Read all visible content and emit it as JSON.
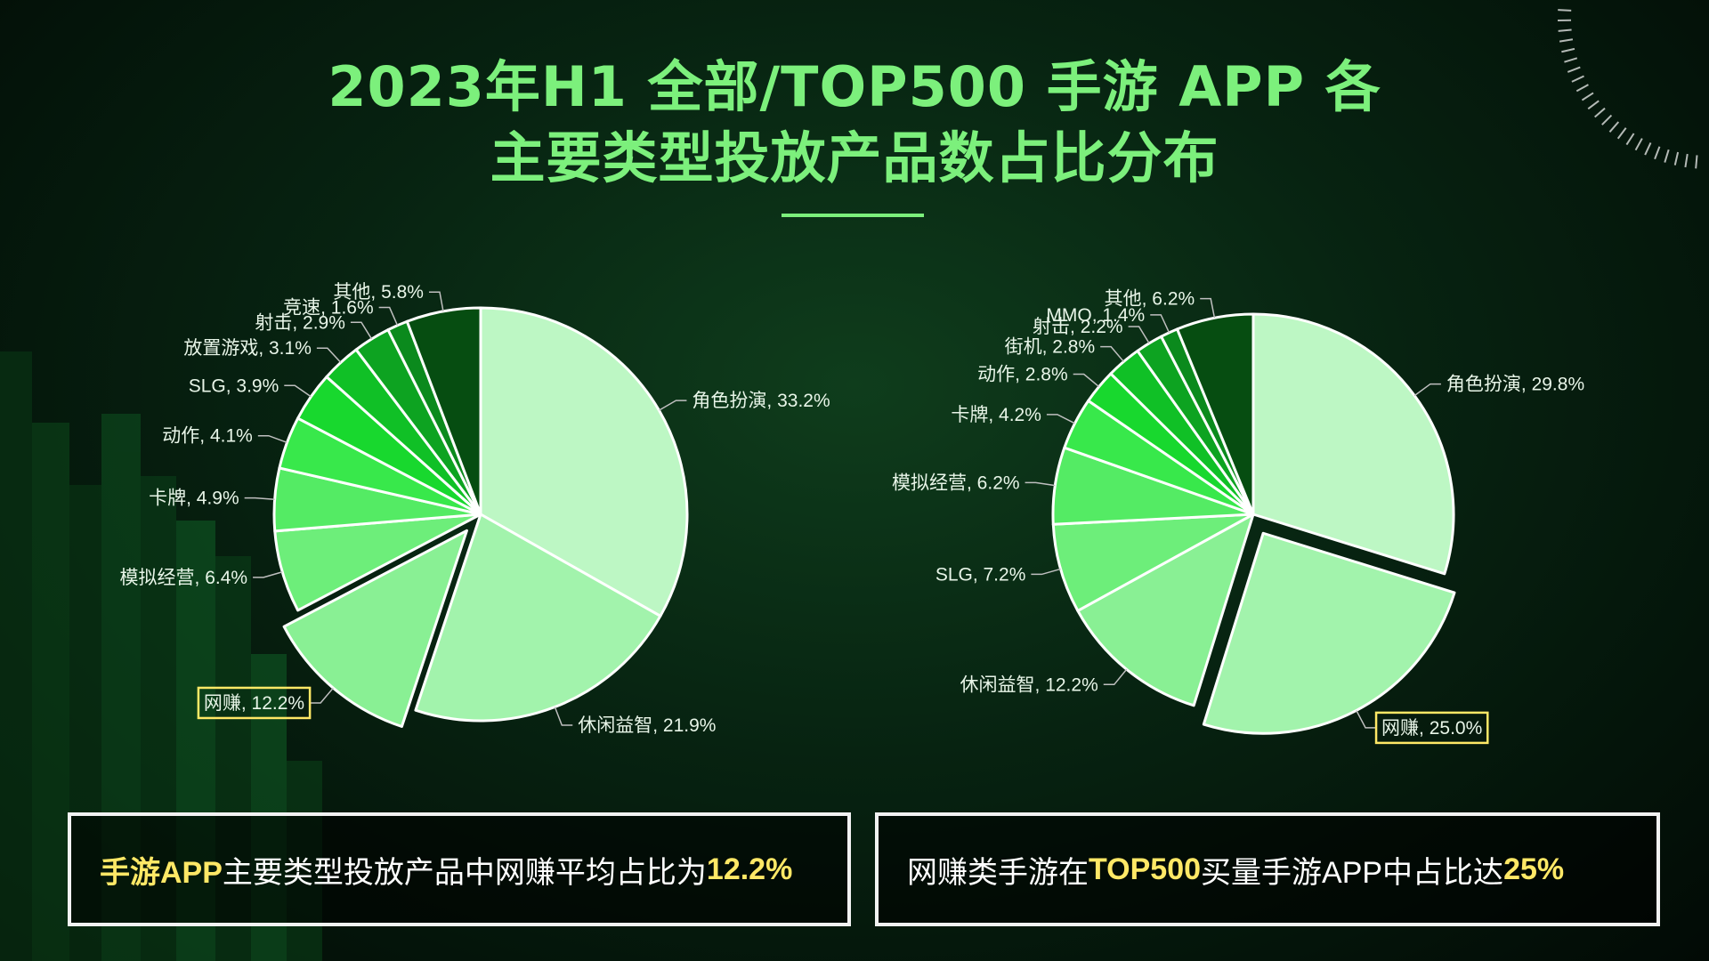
{
  "title": {
    "line1": "2023年H1 全部/TOP500 手游 APP 各",
    "line2": "主要类型投放产品数占比分布"
  },
  "colors": {
    "title": "#7cf07c",
    "highlight": "#ffe866",
    "callout_border": "#ffe866",
    "slices": [
      "#bdf7c4",
      "#a2f3ac",
      "#89f094",
      "#6dee7a",
      "#54eb64",
      "#38e84b",
      "#18d82e",
      "#10c026",
      "#0da321",
      "#0b8a1d",
      "#097019",
      "#085d15",
      "#064d11"
    ]
  },
  "chart_data": [
    {
      "type": "pie",
      "title": "",
      "slices": [
        {
          "label": "角色扮演",
          "value": 33.2,
          "value_text": "33.2%"
        },
        {
          "label": "休闲益智",
          "value": 21.9,
          "value_text": "21.9%"
        },
        {
          "label": "网赚",
          "value": 12.2,
          "value_text": "12.2%",
          "highlight": true
        },
        {
          "label": "模拟经营",
          "value": 6.4,
          "value_text": "6.4%"
        },
        {
          "label": "卡牌",
          "value": 4.9,
          "value_text": "4.9%"
        },
        {
          "label": "动作",
          "value": 4.1,
          "value_text": "4.1%"
        },
        {
          "label": "SLG",
          "value": 3.9,
          "value_text": "3.9%"
        },
        {
          "label": "放置游戏",
          "value": 3.1,
          "value_text": "3.1%"
        },
        {
          "label": "射击",
          "value": 2.9,
          "value_text": "2.9%"
        },
        {
          "label": "竞速",
          "value": 1.6,
          "value_text": "1.6%"
        },
        {
          "label": "其他",
          "value": 5.8,
          "value_text": "5.8%"
        }
      ]
    },
    {
      "type": "pie",
      "title": "",
      "slices": [
        {
          "label": "角色扮演",
          "value": 29.8,
          "value_text": "29.8%"
        },
        {
          "label": "网赚",
          "value": 25.0,
          "value_text": "25.0%",
          "highlight": true
        },
        {
          "label": "休闲益智",
          "value": 12.2,
          "value_text": "12.2%"
        },
        {
          "label": "SLG",
          "value": 7.2,
          "value_text": "7.2%"
        },
        {
          "label": "模拟经营",
          "value": 6.2,
          "value_text": "6.2%"
        },
        {
          "label": "卡牌",
          "value": 4.2,
          "value_text": "4.2%"
        },
        {
          "label": "动作",
          "value": 2.8,
          "value_text": "2.8%"
        },
        {
          "label": "街机",
          "value": 2.8,
          "value_text": "2.8%"
        },
        {
          "label": "射击",
          "value": 2.2,
          "value_text": "2.2%"
        },
        {
          "label": "MMO",
          "value": 1.4,
          "value_text": "1.4%"
        },
        {
          "label": "其他",
          "value": 6.2,
          "value_text": "6.2%"
        }
      ]
    }
  ],
  "conclusions": {
    "left": {
      "part1": "手游APP",
      "part2": "主要类型投放产品中网赚平均占比为",
      "part3": "12.2%"
    },
    "right": {
      "part1": "网赚类手游在",
      "part2": "TOP500",
      "part3": "买量手游APP中占比达",
      "part4": "25%"
    }
  }
}
